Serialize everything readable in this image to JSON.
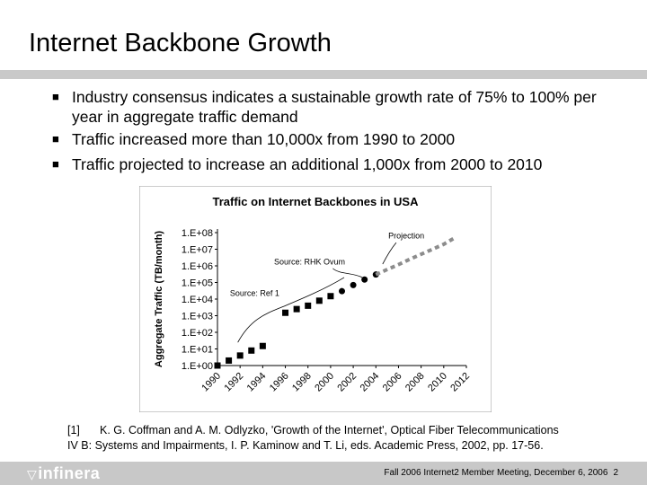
{
  "slide": {
    "title": "Internet Backbone Growth"
  },
  "bullets": [
    "Industry consensus indicates a sustainable growth rate of 75% to 100% per year in aggregate traffic demand",
    "Traffic increased more than 10,000x from 1990 to 2000",
    "Traffic projected to increase an additional 1,000x from 2000 to 2010"
  ],
  "bullet_icon": "square-bullet-icon",
  "chart_data": {
    "type": "scatter",
    "title": "Traffic on Internet Backbones in USA",
    "ylabel": "Aggregate Traffic (TB/month)",
    "xlabel": "",
    "x_ticks": [
      "1990",
      "1992",
      "1994",
      "1996",
      "1998",
      "2000",
      "2002",
      "2004",
      "2006",
      "2008",
      "2010",
      "2012"
    ],
    "y_ticks": [
      "1.E+00",
      "1.E+01",
      "1.E+02",
      "1.E+03",
      "1.E+04",
      "1.E+05",
      "1.E+06",
      "1.E+07",
      "1.E+08"
    ],
    "x_range": [
      1990,
      2012
    ],
    "y_exp_range": [
      0,
      8
    ],
    "log_scale_y": true,
    "grid": false,
    "series": [
      {
        "name": "Source: Ref 1",
        "marker": "square",
        "x": [
          1990,
          1991,
          1992,
          1993,
          1994,
          1996,
          1997,
          1998,
          1999,
          2000
        ],
        "y": [
          1,
          2,
          4,
          8,
          15,
          1500,
          2500,
          4000,
          8000,
          15000
        ]
      },
      {
        "name": "Source: RHK Ovum",
        "marker": "circle",
        "x": [
          2001,
          2002,
          2003,
          2004
        ],
        "y": [
          30000,
          70000,
          150000,
          300000
        ]
      },
      {
        "name": "Projection",
        "marker": "dashed-line",
        "x": [
          2004,
          2005,
          2006,
          2007,
          2008,
          2009,
          2010,
          2011
        ],
        "y": [
          300000,
          600000,
          1200000,
          2500000,
          5000000,
          10000000,
          20000000,
          50000000
        ]
      }
    ],
    "annotations": [
      "Projection",
      "Source: RHK Ovum",
      "Source: Ref 1"
    ]
  },
  "references": {
    "number": "[1]",
    "line1": "K. G. Coffman and A. M. Odlyzko, 'Growth of the Internet', Optical Fiber Telecommunications",
    "line2": "IV B: Systems and Impairments, I. P. Kaminow and T. Li, eds. Academic Press, 2002, pp. 17-56."
  },
  "footer": {
    "logo_text": "infinera",
    "meeting": "Fall 2006 Internet2 Member Meeting, December 6, 2006",
    "page": "2"
  }
}
